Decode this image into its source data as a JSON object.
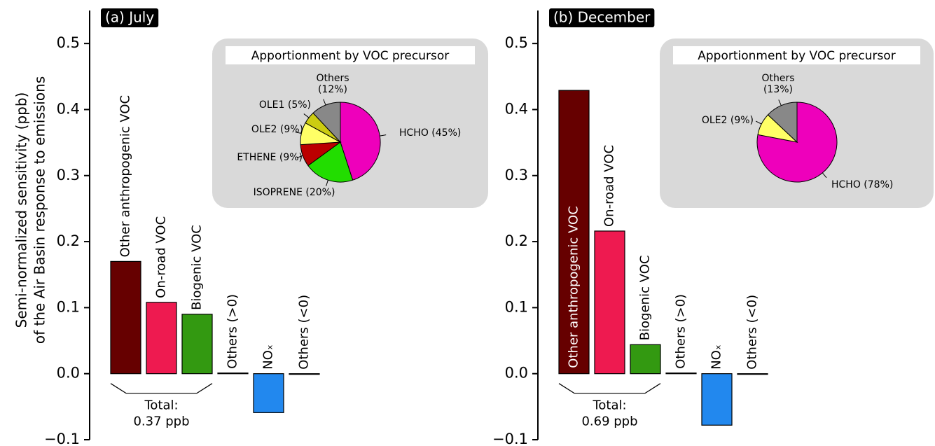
{
  "chart_data": [
    {
      "type": "bar",
      "title": "(a) July",
      "ylabel": [
        "Semi-normalized sensitivity (ppb)",
        "of the Air Basin response to emissions"
      ],
      "categories": [
        "Other anthropogenic VOC",
        "On-road VOC",
        "Biogenic VOC",
        "Others (>0)",
        "NOₓ",
        "Others (<0)"
      ],
      "values": [
        0.17,
        0.108,
        0.09,
        0.001,
        -0.059,
        -0.001
      ],
      "colors": [
        "#660000",
        "#ee1a50",
        "#339911",
        "#ffffff",
        "#2288ee",
        "#ffffff"
      ],
      "ylim": [
        -0.1,
        0.55
      ],
      "yticks": [
        {
          "value": -0.1,
          "label": "−0.1"
        },
        {
          "value": 0,
          "label": "0.0"
        },
        0.1,
        0.2,
        0.3,
        0.4,
        0.5
      ],
      "annotation": [
        "Total:",
        "0.37 ppb"
      ],
      "inset": {
        "type": "pie",
        "title": "Apportionment by VOC precursor",
        "labels": [
          "HCHO (45%)",
          "ISOPRENE (20%)",
          "ETHENE (9%)",
          "OLE2 (9%)",
          "OLE1 (5%)",
          "Others\n(12%)"
        ],
        "values": [
          45,
          20,
          9,
          9,
          5,
          12
        ],
        "colors": [
          "#ee00bb",
          "#22dd00",
          "#bb0000",
          "#ffff66",
          "#cccc11",
          "#888888"
        ]
      }
    },
    {
      "type": "bar",
      "title": "(b) December",
      "categories": [
        "Other anthropogenic VOC",
        "On-road VOC",
        "Biogenic VOC",
        "Others (>0)",
        "NOₓ",
        "Others (<0)"
      ],
      "values": [
        0.429,
        0.216,
        0.044,
        0.001,
        -0.078,
        -0.001
      ],
      "colors": [
        "#660000",
        "#ee1a50",
        "#339911",
        "#ffffff",
        "#2288ee",
        "#ffffff"
      ],
      "ylim": [
        -0.1,
        0.55
      ],
      "yticks": [
        {
          "value": -0.1,
          "label": "−0.1"
        },
        {
          "value": 0,
          "label": "0.0"
        },
        0.1,
        0.2,
        0.3,
        0.4,
        0.5
      ],
      "annotation": [
        "Total:",
        "0.69 ppb"
      ],
      "inset": {
        "type": "pie",
        "title": "Apportionment by VOC precursor",
        "labels": [
          "HCHO (78%)",
          "OLE2 (9%)",
          "Others\n(13%)"
        ],
        "values": [
          78,
          9,
          13
        ],
        "colors": [
          "#ee00bb",
          "#ffff66",
          "#888888"
        ]
      }
    }
  ]
}
